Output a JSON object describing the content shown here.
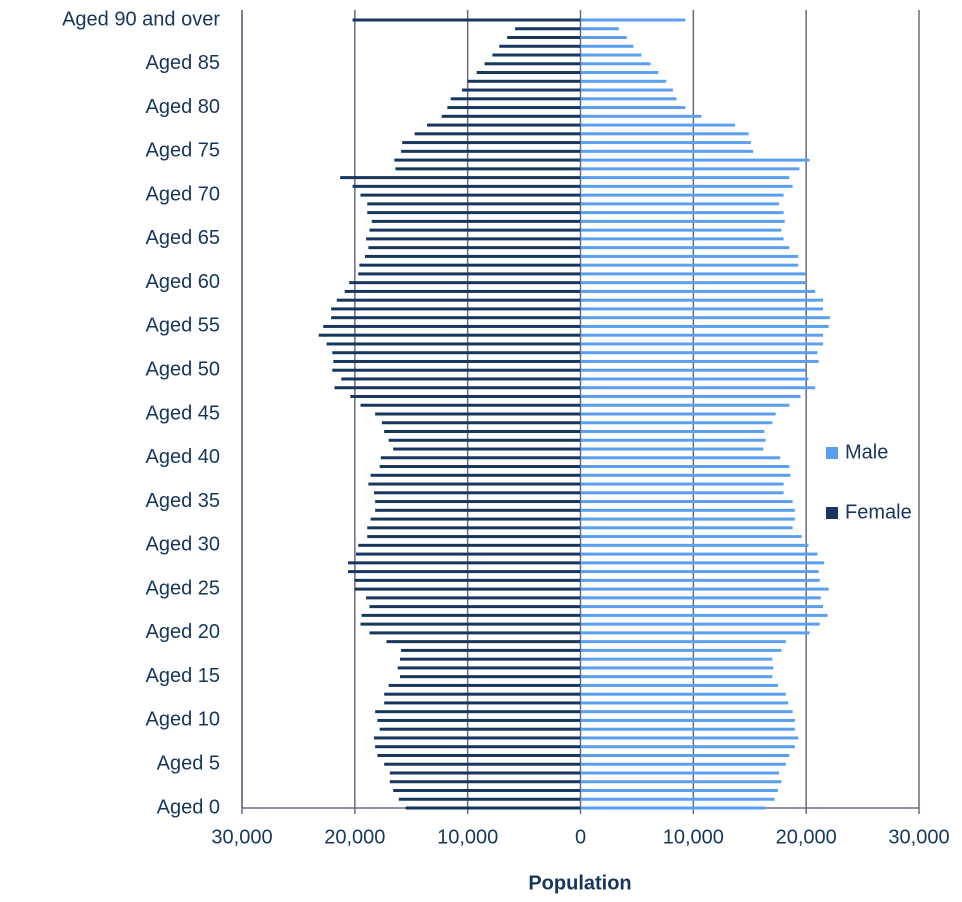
{
  "chart_data": {
    "type": "bar",
    "orientation": "horizontal",
    "xlabel": "Population",
    "categories": [
      "Aged 0",
      null,
      null,
      null,
      null,
      "Aged 5",
      null,
      null,
      null,
      null,
      "Aged 10",
      null,
      null,
      null,
      null,
      "Aged 15",
      null,
      null,
      null,
      null,
      "Aged 20",
      null,
      null,
      null,
      null,
      "Aged 25",
      null,
      null,
      null,
      null,
      "Aged 30",
      null,
      null,
      null,
      null,
      "Aged 35",
      null,
      null,
      null,
      null,
      "Aged 40",
      null,
      null,
      null,
      null,
      "Aged 45",
      null,
      null,
      null,
      null,
      "Aged 50",
      null,
      null,
      null,
      null,
      "Aged 55",
      null,
      null,
      null,
      null,
      "Aged 60",
      null,
      null,
      null,
      null,
      "Aged 65",
      null,
      null,
      null,
      null,
      "Aged 70",
      null,
      null,
      null,
      null,
      "Aged 75",
      null,
      null,
      null,
      null,
      "Aged 80",
      null,
      null,
      null,
      null,
      "Aged 85",
      null,
      null,
      null,
      null,
      "Aged 90 and over"
    ],
    "series": [
      {
        "name": "Male",
        "color": "#5a9ff0",
        "values": [
          16400,
          17200,
          17500,
          17800,
          17600,
          18200,
          18500,
          19000,
          19300,
          19000,
          19000,
          18800,
          18400,
          18200,
          17500,
          17000,
          17100,
          17000,
          17800,
          18200,
          20300,
          21200,
          21900,
          21500,
          21300,
          22000,
          21200,
          21100,
          21600,
          21000,
          20200,
          19600,
          18800,
          19000,
          19000,
          18800,
          18000,
          18000,
          18600,
          18500,
          17700,
          16200,
          16400,
          16300,
          17000,
          17300,
          18500,
          19500,
          20800,
          20200,
          20000,
          21100,
          21000,
          21500,
          21500,
          22000,
          22100,
          21500,
          21500,
          20800,
          19900,
          20000,
          19300,
          19300,
          18500,
          18000,
          17800,
          18100,
          18000,
          17600,
          18000,
          18800,
          18500,
          19400,
          20300,
          15300,
          15100,
          14900,
          13700,
          10700,
          9300,
          8500,
          8200,
          7600,
          6900,
          6200,
          5400,
          4700,
          4100,
          3400,
          9300
        ]
      },
      {
        "name": "Female",
        "color": "#17365d",
        "values": [
          -15500,
          -16100,
          -16600,
          -16900,
          -16900,
          -17400,
          -18000,
          -18200,
          -18300,
          -17800,
          -18000,
          -18200,
          -17400,
          -17400,
          -17000,
          -16000,
          -16200,
          -16000,
          -15900,
          -17200,
          -18700,
          -19500,
          -19400,
          -18700,
          -19000,
          -20000,
          -20000,
          -20600,
          -20600,
          -19900,
          -19700,
          -18900,
          -18900,
          -18600,
          -18200,
          -18200,
          -18300,
          -18800,
          -18600,
          -17800,
          -17700,
          -16600,
          -17000,
          -17400,
          -17600,
          -18200,
          -19500,
          -20400,
          -21800,
          -21200,
          -22000,
          -21900,
          -22000,
          -22500,
          -23200,
          -22800,
          -22100,
          -22100,
          -21600,
          -20900,
          -20500,
          -19700,
          -19600,
          -19100,
          -18800,
          -19000,
          -18700,
          -18500,
          -18900,
          -18900,
          -19500,
          -20200,
          -21300,
          -16400,
          -16500,
          -15900,
          -15800,
          -14700,
          -13600,
          -12300,
          -11800,
          -11500,
          -10500,
          -10000,
          -9200,
          -8500,
          -7800,
          -7200,
          -6500,
          -5800,
          -20200
        ]
      }
    ],
    "xlim": [
      -30000,
      30000
    ],
    "xticks": [
      {
        "value": -30000,
        "label": "30,000"
      },
      {
        "value": -20000,
        "label": "20,000"
      },
      {
        "value": -10000,
        "label": "10,000"
      },
      0,
      {
        "value": 10000,
        "label": "10,000"
      },
      {
        "value": 20000,
        "label": "20,000"
      },
      {
        "value": 30000,
        "label": "30,000"
      }
    ],
    "grid": true,
    "legend": "right"
  }
}
